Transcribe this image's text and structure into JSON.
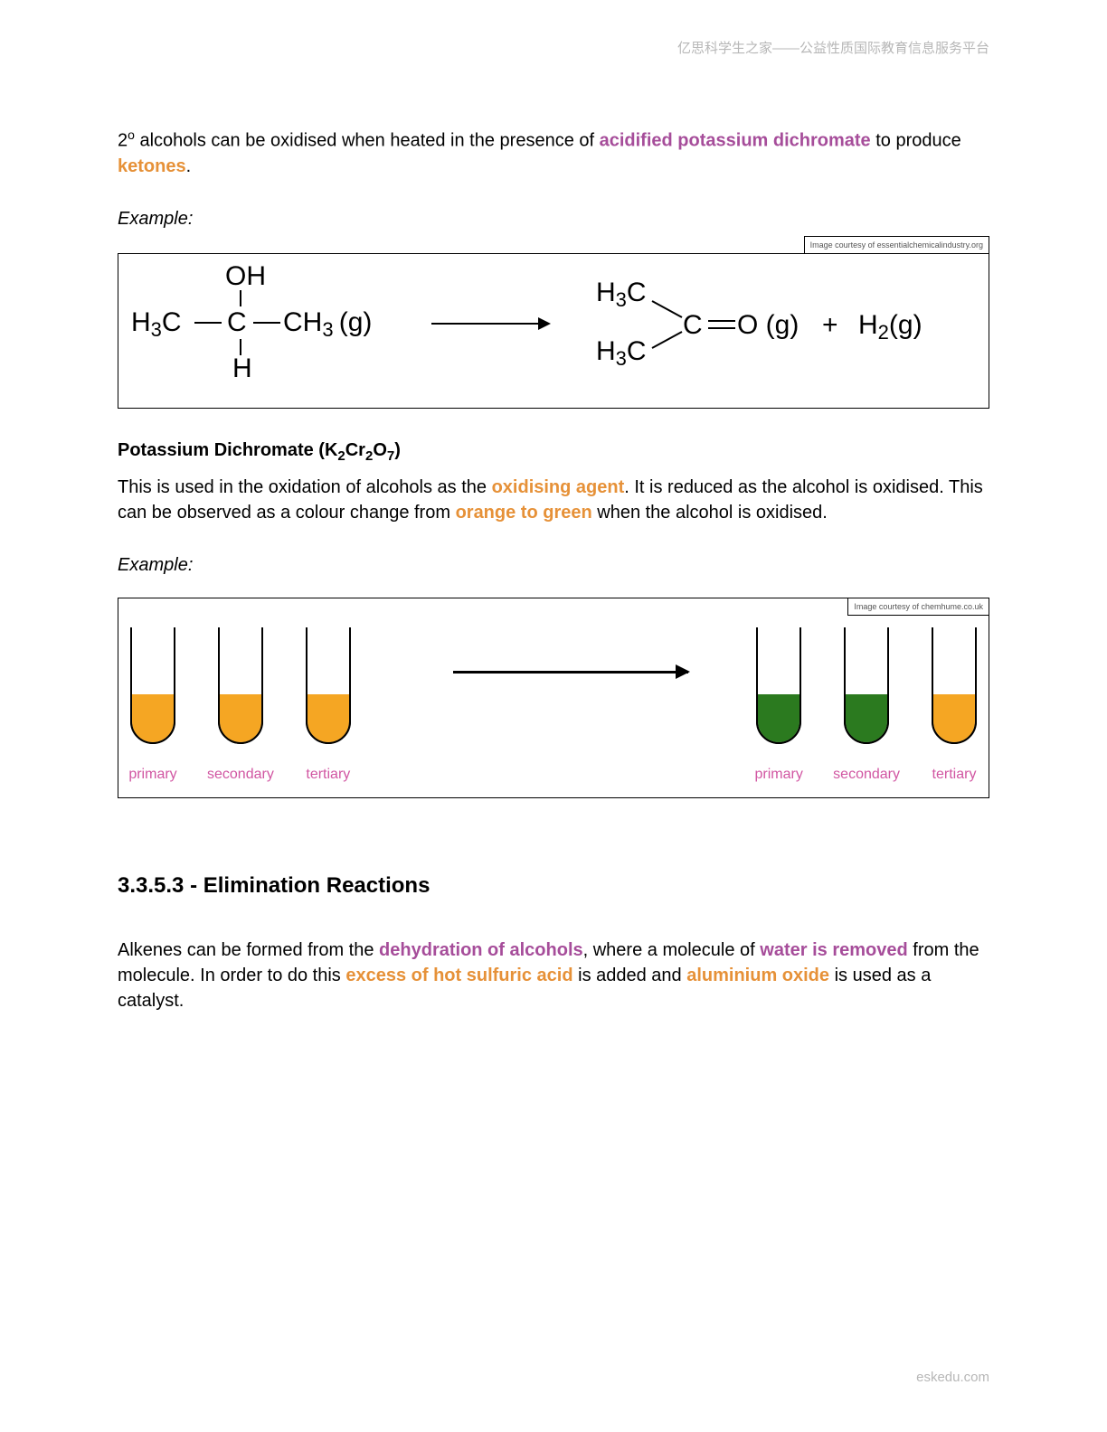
{
  "header": "亿思科学生之家——公益性质国际教育信息服务平台",
  "footer": "eskedu.com",
  "intro": {
    "pre": "2",
    "sup": "o",
    "t1": " alcohols can be oxidised when heated in the presence of ",
    "hl1": "acidified potassium dichromate",
    "t2": " to produce ",
    "hl2": "ketones",
    "t3": "."
  },
  "example_label": "Example:",
  "reaction": {
    "credit": "Image courtesy of essentialchemicalindustry.org",
    "reactant_svg_alt": "H3C-C(OH)(H)-CH3 (g)",
    "product_svg_alt": "(H3C)2C=O (g) + H2(g)"
  },
  "dichromate": {
    "title_pre": "Potassium Dichromate (K",
    "sub1": "2",
    "mid1": "Cr",
    "sub2": "2",
    "mid2": "O",
    "sub3": "7",
    "title_post": ")",
    "t1": "This is used in the oxidation of alcohols as the ",
    "hl1": "oxidising agent",
    "t2": ". It is reduced as the alcohol is oxidised. This can be observed as a colour change from ",
    "hl2": "orange to green",
    "t3": " when the alcohol is oxidised."
  },
  "tubes": {
    "credit": "Image courtesy of chemhume.co.uk",
    "labels": [
      "primary",
      "secondary",
      "tertiary"
    ],
    "left_fill": "#f5a623",
    "right_fills": [
      "#2b7a1f",
      "#2b7a1f",
      "#f5a623"
    ],
    "stroke": "#000000",
    "stroke_width": 2,
    "tube_w": 48,
    "tube_h": 130,
    "fill_h": 54
  },
  "section": {
    "title": "3.3.5.3 - Elimination Reactions",
    "t1": "Alkenes can be formed from the ",
    "hl1": "dehydration of alcohols",
    "t2": ", where a molecule of ",
    "hl2": "water is removed",
    "t3": " from the molecule. In order to do this ",
    "hl3": "excess of hot sulfuric acid",
    "t4": " is added and ",
    "hl4": "aluminium oxide",
    "t5": " is used as a catalyst."
  }
}
